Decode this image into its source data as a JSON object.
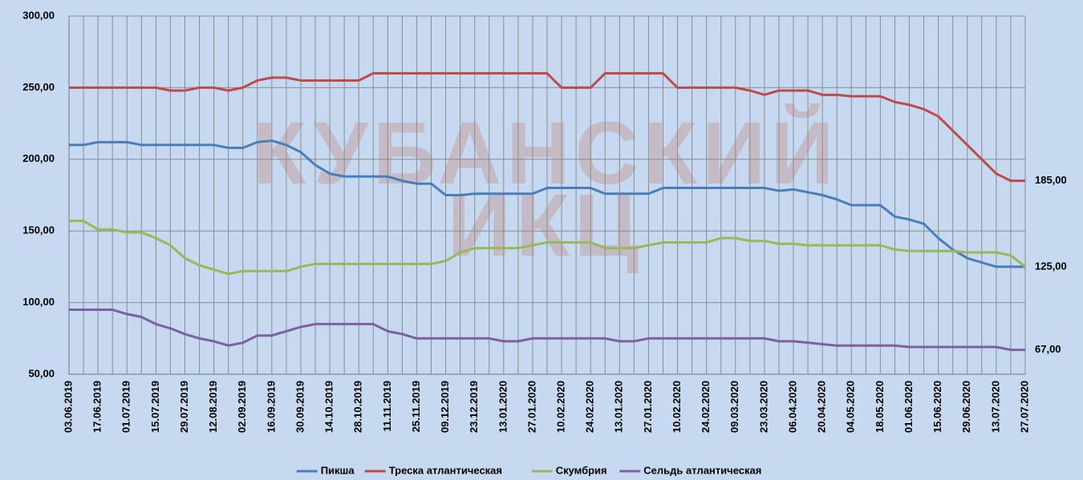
{
  "chart_data": {
    "type": "line",
    "watermark": [
      "КУБАНСКИЙ",
      "ИКЦ"
    ],
    "categories": [
      "03.06.2019",
      null,
      "17.06.2019",
      null,
      "01.07.2019",
      null,
      "15.07.2019",
      null,
      "29.07.2019",
      null,
      "12.08.2019",
      null,
      "02.09.2019",
      null,
      "16.09.2019",
      null,
      "30.09.2019",
      null,
      "14.10.2019",
      null,
      "28.10.2019",
      null,
      "11.11.2019",
      null,
      "25.11.2019",
      null,
      "09.12.2019",
      null,
      "23.12.2019",
      null,
      "13.01.2020",
      null,
      "27.01.2020",
      null,
      "10.02.2020",
      null,
      "24.02.2020",
      null,
      "13.01.2020",
      null,
      "27.01.2020",
      null,
      "10.02.2020",
      null,
      "24.02.2020",
      null,
      "09.03.2020",
      null,
      "23.03.2020",
      null,
      "06.04.2020",
      null,
      "20.04.2020",
      null,
      "04.05.2020",
      null,
      "18.05.2020",
      null,
      "01.06.2020",
      null,
      "15.06.2020",
      null,
      "29.06.2020",
      null,
      "13.07.2020",
      null,
      "27.07.2020"
    ],
    "series": [
      {
        "name": "Пикша",
        "color": "#4a7ebb",
        "values": [
          210,
          210,
          212,
          212,
          212,
          210,
          210,
          210,
          210,
          210,
          210,
          208,
          208,
          212,
          213,
          210,
          205,
          196,
          190,
          188,
          188,
          188,
          188,
          185,
          183,
          183,
          175,
          175,
          176,
          176,
          176,
          176,
          176,
          180,
          180,
          180,
          180,
          176,
          176,
          176,
          176,
          180,
          180,
          180,
          180,
          180,
          180,
          180,
          180,
          178,
          179,
          177,
          175,
          172,
          168,
          168,
          168,
          160,
          158,
          155,
          145,
          137,
          131,
          128,
          125,
          125,
          125
        ]
      },
      {
        "name": "Треска атлантическая",
        "color": "#be4b48",
        "values": [
          250,
          250,
          250,
          250,
          250,
          250,
          250,
          248,
          248,
          250,
          250,
          248,
          250,
          255,
          257,
          257,
          255,
          255,
          255,
          255,
          255,
          260,
          260,
          260,
          260,
          260,
          260,
          260,
          260,
          260,
          260,
          260,
          260,
          260,
          250,
          250,
          250,
          260,
          260,
          260,
          260,
          260,
          250,
          250,
          250,
          250,
          250,
          248,
          245,
          248,
          248,
          248,
          245,
          245,
          244,
          244,
          244,
          240,
          238,
          235,
          230,
          220,
          210,
          200,
          190,
          185,
          185
        ]
      },
      {
        "name": "Скумбрия",
        "color": "#98b954",
        "values": [
          157,
          157,
          151,
          151,
          149,
          149,
          145,
          140,
          131,
          126,
          123,
          120,
          122,
          122,
          122,
          122,
          125,
          127,
          127,
          127,
          127,
          127,
          127,
          127,
          127,
          127,
          129,
          135,
          138,
          138,
          138,
          138,
          140,
          142,
          142,
          142,
          142,
          138,
          138,
          138,
          140,
          142,
          142,
          142,
          142,
          145,
          145,
          143,
          143,
          141,
          141,
          140,
          140,
          140,
          140,
          140,
          140,
          137,
          136,
          136,
          136,
          136,
          135,
          135,
          135,
          133,
          125
        ]
      },
      {
        "name": "Сельдь атлантическая",
        "color": "#7d60a0",
        "values": [
          95,
          95,
          95,
          95,
          92,
          90,
          85,
          82,
          78,
          75,
          73,
          70,
          72,
          77,
          77,
          80,
          83,
          85,
          85,
          85,
          85,
          85,
          80,
          78,
          75,
          75,
          75,
          75,
          75,
          75,
          73,
          73,
          75,
          75,
          75,
          75,
          75,
          75,
          73,
          73,
          75,
          75,
          75,
          75,
          75,
          75,
          75,
          75,
          75,
          73,
          73,
          72,
          71,
          70,
          70,
          70,
          70,
          70,
          69,
          69,
          69,
          69,
          69,
          69,
          69,
          67,
          67
        ]
      }
    ],
    "annotations": [
      {
        "label": "185,00",
        "value": 185
      },
      {
        "label": "125,00",
        "value": 125
      },
      {
        "label": "67,00",
        "value": 67
      }
    ],
    "ylim": [
      50,
      300
    ],
    "yticks": [
      {
        "value": 50,
        "label": "50,00"
      },
      {
        "value": 100,
        "label": "100,00"
      },
      {
        "value": 150,
        "label": "150,00"
      },
      {
        "value": 200,
        "label": "200,00"
      },
      {
        "value": 250,
        "label": "250,00"
      },
      {
        "value": 300,
        "label": "300,00"
      }
    ],
    "grid": true,
    "legend": "bottom"
  }
}
